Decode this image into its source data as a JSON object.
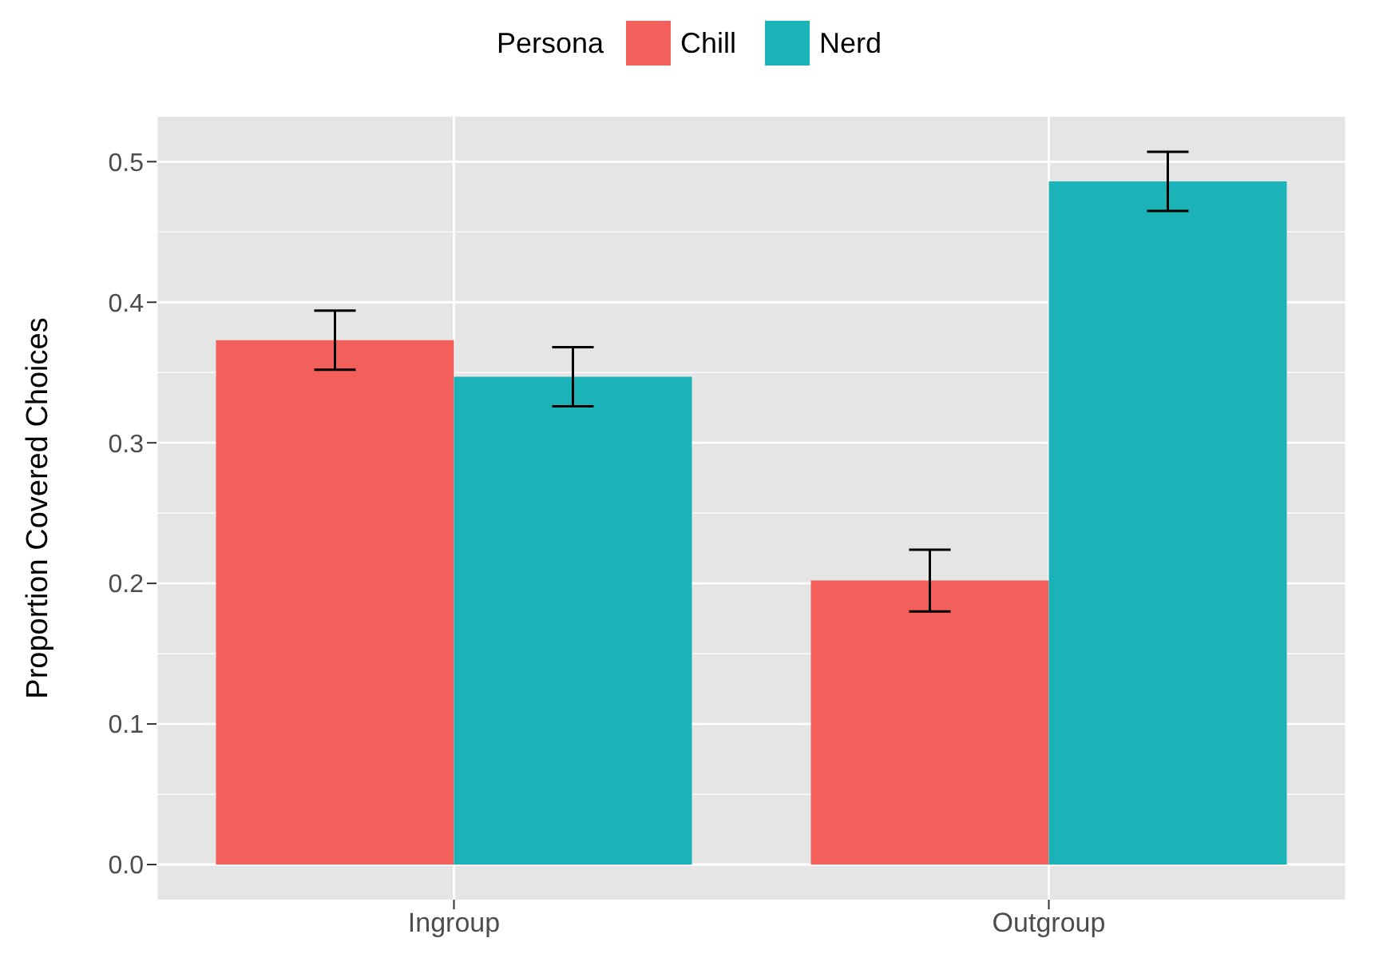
{
  "chart_data": {
    "type": "bar",
    "ylabel": "Proportion Covered Choices",
    "legend_title": "Persona",
    "categories": [
      "Ingroup",
      "Outgroup"
    ],
    "series": [
      {
        "name": "Chill",
        "color": "#f35f5b",
        "values": [
          0.373,
          0.202
        ],
        "errors": [
          [
            0.352,
            0.394
          ],
          [
            0.18,
            0.224
          ]
        ]
      },
      {
        "name": "Nerd",
        "color": "#1bb3b7",
        "values": [
          0.347,
          0.486
        ],
        "errors": [
          [
            0.326,
            0.368
          ],
          [
            0.465,
            0.507
          ]
        ]
      }
    ],
    "ylim": [
      -0.025,
      0.532
    ],
    "yticks": [
      {
        "value": 0,
        "label": "0.0"
      },
      0.1,
      0.2,
      0.3,
      0.4,
      0.5
    ],
    "grid": true,
    "legend": "top"
  }
}
